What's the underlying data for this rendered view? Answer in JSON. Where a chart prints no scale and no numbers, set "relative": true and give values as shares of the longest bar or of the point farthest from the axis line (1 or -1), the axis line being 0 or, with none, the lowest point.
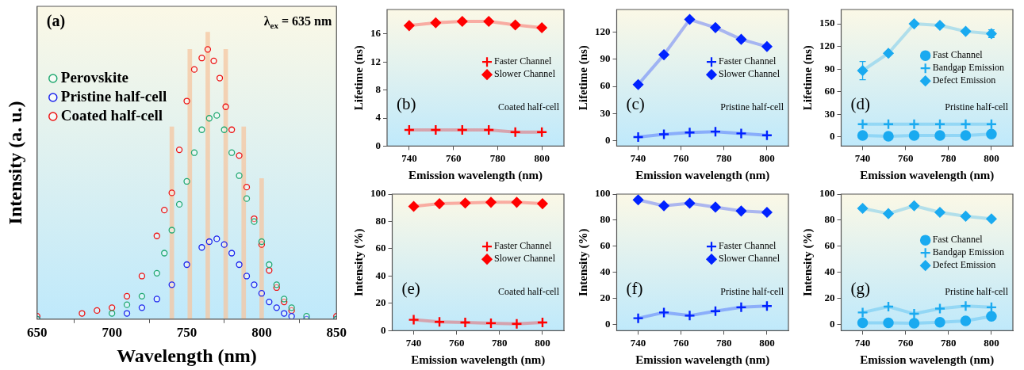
{
  "chart_data": [
    {
      "type": "scatter",
      "xlabel": "Wavelength (nm)",
      "ylabel": "Intensity (a. u.)",
      "relative": true,
      "xlim": [
        650,
        850
      ],
      "xticks": [
        650,
        700,
        750,
        800,
        850
      ],
      "tick_labels": "x",
      "marker": "circle",
      "legend": "top left",
      "annotations": [
        "(a)",
        "λ$_{ex}$ = 635 nm"
      ],
      "series": [
        {
          "type": "bar",
          "color": "#f5c6a0",
          "x": [
            740,
            752,
            764,
            776,
            788,
            800
          ],
          "values": [
            0.67,
            0.94,
            1.0,
            0.94,
            0.67,
            0.49
          ]
        },
        {
          "name": "Perovskite",
          "color": "#1fa870",
          "x": [
            650,
            700,
            710,
            720,
            730,
            735,
            740,
            745,
            750,
            755,
            760,
            765,
            770,
            775,
            780,
            785,
            790,
            795,
            800,
            805,
            810,
            815,
            820,
            830,
            850
          ],
          "values": [
            0,
            0.02,
            0.05,
            0.08,
            0.16,
            0.23,
            0.31,
            0.4,
            0.48,
            0.58,
            0.66,
            0.7,
            0.71,
            0.66,
            0.58,
            0.5,
            0.42,
            0.34,
            0.27,
            0.19,
            0.12,
            0.07,
            0.04,
            0.01,
            0
          ]
        },
        {
          "name": "Pristine half-cell",
          "color": "#1a22ee",
          "x": [
            650,
            710,
            720,
            730,
            740,
            750,
            760,
            765,
            770,
            775,
            780,
            785,
            790,
            795,
            800,
            805,
            810,
            815,
            820,
            830,
            850
          ],
          "values": [
            0,
            0.02,
            0.04,
            0.07,
            0.12,
            0.19,
            0.25,
            0.27,
            0.28,
            0.26,
            0.23,
            0.19,
            0.15,
            0.12,
            0.09,
            0.06,
            0.04,
            0.02,
            0.01,
            0,
            0
          ]
        },
        {
          "name": "Coated half-cell",
          "color": "#ee1111",
          "x": [
            650,
            680,
            690,
            700,
            710,
            720,
            730,
            735,
            740,
            745,
            750,
            755,
            760,
            764,
            768,
            772,
            776,
            780,
            785,
            790,
            795,
            800,
            805,
            810,
            815,
            820,
            850
          ],
          "values": [
            0.01,
            0.02,
            0.03,
            0.04,
            0.08,
            0.15,
            0.29,
            0.38,
            0.44,
            0.59,
            0.76,
            0.87,
            0.91,
            0.94,
            0.9,
            0.84,
            0.74,
            0.66,
            0.57,
            0.46,
            0.35,
            0.26,
            0.17,
            0.11,
            0.06,
            0.03,
            0.01
          ]
        }
      ]
    },
    {
      "type": "line",
      "xlabel": "Emission wavelength (nm)",
      "ylabel": "Lifetime (ns)",
      "x": [
        740,
        752,
        764,
        776,
        788,
        800
      ],
      "xlim": [
        730,
        810
      ],
      "xticks": [
        740,
        760,
        780,
        800
      ],
      "ylim": [
        0,
        19.5
      ],
      "yticks": [
        0,
        4,
        8,
        12,
        16
      ],
      "legend": "right",
      "annotations": [
        "(b)",
        "Coated half-cell"
      ],
      "series": [
        {
          "name": "Faster Channel",
          "color": "#ff0000",
          "marker": "cross",
          "values": [
            2.3,
            2.3,
            2.3,
            2.3,
            2.0,
            2.0
          ]
        },
        {
          "name": "Slower Channel",
          "color": "#ff0000",
          "marker": "diamond",
          "values": [
            17.2,
            17.6,
            17.8,
            17.8,
            17.3,
            16.9
          ]
        }
      ]
    },
    {
      "type": "line",
      "xlabel": "Emission wavelength (nm)",
      "ylabel": "Lifetime (ns)",
      "x": [
        740,
        752,
        764,
        776,
        788,
        800
      ],
      "xlim": [
        730,
        810
      ],
      "xticks": [
        740,
        760,
        780,
        800
      ],
      "ylim": [
        -6,
        145
      ],
      "yticks": [
        0,
        30,
        60,
        90,
        120
      ],
      "legend": "right",
      "annotations": [
        "(c)",
        "Pristine half-cell"
      ],
      "series": [
        {
          "name": "Faster Channel",
          "color": "#0022ff",
          "marker": "cross",
          "values": [
            4,
            7,
            9,
            10,
            8,
            6
          ]
        },
        {
          "name": "Slower Channel",
          "color": "#0022ff",
          "marker": "diamond",
          "values": [
            62,
            95,
            134,
            125,
            112,
            104
          ]
        }
      ]
    },
    {
      "type": "line",
      "xlabel": "Emission wavelength (nm)",
      "ylabel": "Lifetime (ns)",
      "x": [
        740,
        752,
        764,
        776,
        788,
        800
      ],
      "xlim": [
        730,
        810
      ],
      "xticks": [
        740,
        760,
        780,
        800
      ],
      "ylim": [
        -12,
        169
      ],
      "yticks": [
        0,
        30,
        60,
        90,
        120,
        150
      ],
      "legend": "right",
      "annotations": [
        "(d)",
        "Pristine half-cell"
      ],
      "series": [
        {
          "name": "Fast Channel",
          "color": "#1aaaf0",
          "marker": "circle",
          "values": [
            2,
            1,
            2,
            2,
            2,
            4
          ]
        },
        {
          "name": "Bandgap Emission",
          "color": "#1aaaf0",
          "marker": "cross",
          "values": [
            17,
            17,
            17,
            17,
            17,
            17
          ]
        },
        {
          "name": "Defect Emission",
          "color": "#1aaaf0",
          "marker": "diamond",
          "values": [
            88,
            111,
            150,
            148,
            140,
            137
          ],
          "errors": [
            12,
            null,
            null,
            null,
            null,
            5
          ]
        }
      ]
    },
    {
      "type": "line",
      "xlabel": "Emission wavelength (nm)",
      "ylabel": "Intensity (%)",
      "x": [
        740,
        752,
        764,
        776,
        788,
        800
      ],
      "xlim": [
        730,
        810
      ],
      "xticks": [
        740,
        760,
        780,
        800
      ],
      "ylim": [
        0,
        100
      ],
      "yticks": [
        0,
        20,
        40,
        60,
        80,
        100
      ],
      "legend": "right",
      "annotations": [
        "(e)",
        "Coated half-cell"
      ],
      "series": [
        {
          "name": "Faster Channel",
          "color": "#ff0000",
          "marker": "cross",
          "values": [
            8,
            6.5,
            6,
            5.5,
            5,
            6
          ]
        },
        {
          "name": "Slower Channel",
          "color": "#ff0000",
          "marker": "diamond",
          "values": [
            91,
            93,
            93.5,
            94,
            94,
            93
          ]
        }
      ]
    },
    {
      "type": "line",
      "xlabel": "Emission wavelength (nm)",
      "ylabel": "Intensity (%)",
      "x": [
        740,
        752,
        764,
        776,
        788,
        800
      ],
      "xlim": [
        730,
        810
      ],
      "xticks": [
        740,
        760,
        780,
        800
      ],
      "ylim": [
        -5,
        100
      ],
      "yticks": [
        0,
        20,
        40,
        60,
        80,
        100
      ],
      "legend": "right",
      "annotations": [
        "(f)",
        "Pristine half-cell"
      ],
      "series": [
        {
          "name": "Faster Channel",
          "color": "#0022ff",
          "marker": "cross",
          "values": [
            4.6,
            9,
            6.6,
            10,
            13,
            14
          ]
        },
        {
          "name": "Slower Channel",
          "color": "#0022ff",
          "marker": "diamond",
          "values": [
            95.6,
            91,
            93,
            90,
            87,
            86
          ]
        }
      ]
    },
    {
      "type": "line",
      "xlabel": "Emission wavelength (nm)",
      "ylabel": "Intensity (%)",
      "x": [
        740,
        752,
        764,
        776,
        788,
        800
      ],
      "xlim": [
        730,
        810
      ],
      "xticks": [
        740,
        760,
        780,
        800
      ],
      "ylim": [
        -5,
        100
      ],
      "yticks": [
        0,
        20,
        40,
        60,
        80,
        100
      ],
      "legend": "right",
      "annotations": [
        "(g)",
        "Pristine half-cell"
      ],
      "series": [
        {
          "name": "Fast Channel",
          "color": "#1aaaf0",
          "marker": "circle",
          "values": [
            1,
            1,
            0.7,
            1.5,
            2.5,
            6
          ]
        },
        {
          "name": "Bandgap Emission",
          "color": "#1aaaf0",
          "marker": "cross",
          "values": [
            9,
            13.5,
            8,
            12,
            14,
            13
          ]
        },
        {
          "name": "Defect Emission",
          "color": "#1aaaf0",
          "marker": "diamond",
          "values": [
            89,
            85,
            91,
            86,
            83,
            81
          ]
        }
      ]
    }
  ]
}
